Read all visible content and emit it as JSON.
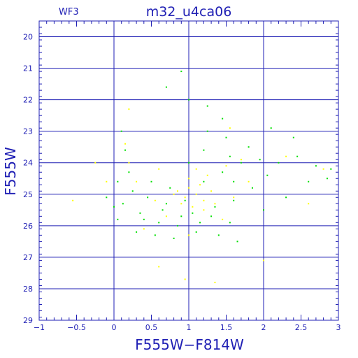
{
  "chart_data": {
    "type": "scatter",
    "panel_label": "WF3",
    "title": "m32_u4ca06",
    "xlabel": "F555W−F814W",
    "ylabel": "F555W",
    "xlim": [
      -1,
      3
    ],
    "ylim": [
      29,
      19.5
    ],
    "y_inverted": true,
    "grid": true,
    "x_ticks": [
      -1,
      -0.5,
      0,
      0.5,
      1,
      1.5,
      2,
      2.5,
      3
    ],
    "x_tick_labels": [
      "−1",
      "−0.5",
      "0",
      "0.5",
      "1",
      "1.5",
      "2",
      "2.5",
      "3"
    ],
    "y_ticks": [
      20,
      21,
      22,
      23,
      24,
      25,
      26,
      27,
      28,
      29
    ],
    "y_tick_labels": [
      "20",
      "21",
      "22",
      "23",
      "24",
      "25",
      "26",
      "27",
      "28",
      "29"
    ],
    "series": [
      {
        "color": "#00e000",
        "points": [
          [
            0.12,
            25.3
          ],
          [
            0.35,
            25.6
          ],
          [
            0.6,
            25.9
          ],
          [
            0.85,
            26.0
          ],
          [
            1.05,
            25.6
          ],
          [
            1.3,
            25.7
          ],
          [
            1.55,
            25.9
          ],
          [
            0.25,
            24.9
          ],
          [
            0.45,
            25.1
          ],
          [
            0.7,
            25.3
          ],
          [
            0.95,
            25.2
          ],
          [
            1.2,
            24.6
          ],
          [
            1.45,
            24.3
          ],
          [
            1.7,
            24.0
          ],
          [
            1.95,
            23.9
          ],
          [
            2.2,
            24.0
          ],
          [
            2.45,
            23.8
          ],
          [
            2.7,
            24.1
          ],
          [
            2.9,
            24.2
          ],
          [
            1.8,
            23.5
          ],
          [
            1.5,
            23.2
          ],
          [
            1.25,
            23.0
          ],
          [
            0.1,
            23.0
          ],
          [
            0.15,
            23.6
          ],
          [
            0.2,
            24.3
          ],
          [
            0.05,
            25.8
          ],
          [
            0.3,
            26.2
          ],
          [
            0.55,
            26.3
          ],
          [
            0.8,
            26.4
          ],
          [
            1.1,
            26.2
          ],
          [
            1.4,
            26.3
          ],
          [
            1.65,
            26.5
          ],
          [
            2.0,
            25.5
          ],
          [
            2.3,
            25.1
          ],
          [
            2.6,
            24.6
          ],
          [
            2.85,
            24.5
          ],
          [
            1.0,
            22.0
          ],
          [
            1.25,
            22.2
          ],
          [
            0.9,
            21.1
          ],
          [
            0.7,
            21.6
          ],
          [
            1.45,
            22.6
          ],
          [
            2.1,
            22.9
          ],
          [
            2.4,
            23.2
          ],
          [
            0.4,
            25.8
          ],
          [
            0.65,
            25.5
          ],
          [
            0.9,
            25.7
          ],
          [
            1.15,
            25.9
          ],
          [
            1.35,
            25.4
          ],
          [
            1.6,
            25.2
          ],
          [
            1.85,
            24.8
          ],
          [
            0.05,
            24.6
          ],
          [
            0.0,
            25.4
          ],
          [
            -0.1,
            25.1
          ],
          [
            1.0,
            24.0
          ],
          [
            1.2,
            23.6
          ],
          [
            1.6,
            24.6
          ],
          [
            2.05,
            24.4
          ],
          [
            0.5,
            24.6
          ],
          [
            0.75,
            24.8
          ],
          [
            1.55,
            23.8
          ]
        ]
      },
      {
        "color": "#ffff00",
        "points": [
          [
            1.1,
            25.0
          ],
          [
            1.0,
            24.8
          ],
          [
            1.2,
            25.2
          ],
          [
            0.95,
            25.1
          ],
          [
            1.15,
            24.7
          ],
          [
            1.05,
            25.4
          ],
          [
            0.85,
            24.9
          ],
          [
            1.3,
            24.9
          ],
          [
            1.0,
            24.5
          ],
          [
            1.2,
            25.5
          ],
          [
            0.9,
            25.3
          ],
          [
            1.25,
            24.4
          ],
          [
            0.8,
            25.0
          ],
          [
            1.35,
            25.3
          ],
          [
            1.1,
            24.2
          ],
          [
            0.2,
            24.0
          ],
          [
            0.15,
            23.4
          ],
          [
            0.3,
            24.6
          ],
          [
            0.6,
            24.2
          ],
          [
            0.7,
            25.7
          ],
          [
            1.5,
            24.1
          ],
          [
            1.6,
            25.1
          ],
          [
            1.7,
            23.9
          ],
          [
            2.3,
            23.8
          ],
          [
            2.8,
            24.2
          ],
          [
            -0.55,
            25.2
          ],
          [
            -0.25,
            24.0
          ],
          [
            0.6,
            27.3
          ],
          [
            0.95,
            27.7
          ],
          [
            1.35,
            27.8
          ],
          [
            2.0,
            27.1
          ],
          [
            1.0,
            26.3
          ],
          [
            0.4,
            26.1
          ],
          [
            1.45,
            25.8
          ],
          [
            0.55,
            25.2
          ],
          [
            1.8,
            24.6
          ],
          [
            0.2,
            22.3
          ],
          [
            1.55,
            22.9
          ],
          [
            2.6,
            25.3
          ],
          [
            -0.1,
            24.6
          ]
        ]
      }
    ]
  }
}
